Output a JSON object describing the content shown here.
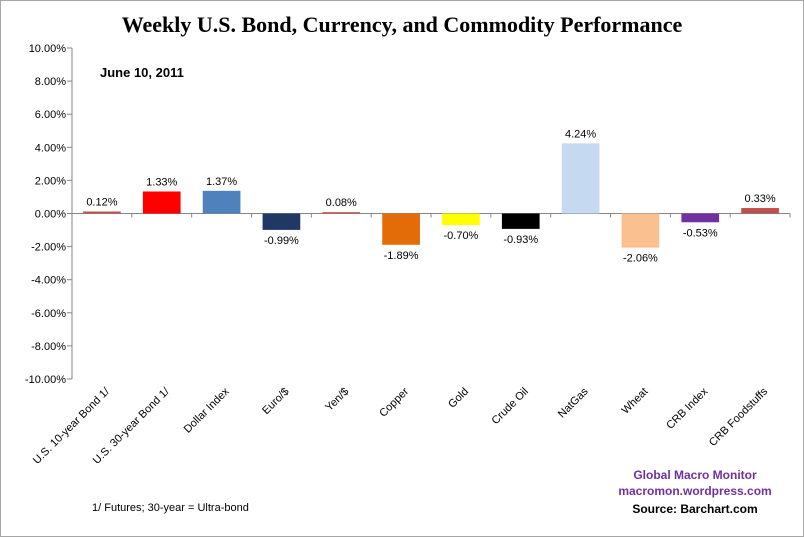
{
  "chart_data": {
    "type": "bar",
    "title": "Weekly U.S. Bond, Currency, and Commodity Performance",
    "subtitle": "June 10, 2011",
    "categories": [
      "U.S. 10-year Bond 1/",
      "U.S. 30-year Bond 1/",
      "Dollar Index",
      "Euro/$",
      "Yen/$",
      "Copper",
      "Gold",
      "Crude Oil",
      "NatGas",
      "Wheat",
      "CRB Index",
      "CRB Foodstuffs"
    ],
    "values": [
      0.12,
      1.33,
      1.37,
      -0.99,
      0.08,
      -1.89,
      -0.7,
      -0.93,
      4.24,
      -2.06,
      -0.53,
      0.33
    ],
    "value_labels": [
      "0.12%",
      "1.33%",
      "1.37%",
      "-0.99%",
      "0.08%",
      "-1.89%",
      "-0.70%",
      "-0.93%",
      "4.24%",
      "-2.06%",
      "-0.53%",
      "0.33%"
    ],
    "bar_colors": [
      "#c0504d",
      "#ff0000",
      "#4f81bd",
      "#1f3864",
      "#c0504d",
      "#e36c09",
      "#ffff00",
      "#000000",
      "#c5d9f1",
      "#fac090",
      "#7030a0",
      "#c0504d"
    ],
    "ylim": [
      -10,
      10
    ],
    "yticks": [
      10,
      8,
      6,
      4,
      2,
      0,
      -2,
      -4,
      -6,
      -8,
      -10
    ],
    "ytick_labels": [
      "10.00%",
      "8.00%",
      "6.00%",
      "4.00%",
      "2.00%",
      "0.00%",
      "-2.00%",
      "-4.00%",
      "-6.00%",
      "-8.00%",
      "-10.00%"
    ],
    "xlabel": "",
    "ylabel": "",
    "grid": false,
    "legend": "none"
  },
  "annotations": {
    "date": "June 10, 2011",
    "footnote": "1/  Futures; 30-year = Ultra-bond",
    "credit_line1": "Global  Macro  Monitor",
    "credit_line2": "macromon.wordpress.com",
    "source": "Source:  Barchart.com"
  }
}
